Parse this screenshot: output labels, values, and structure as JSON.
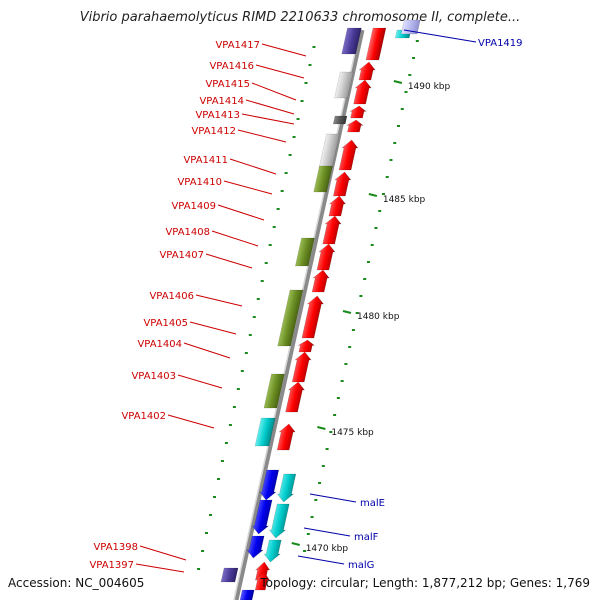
{
  "title": "Vibrio parahaemolyticus RIMD 2210633 chromosome II, complete...",
  "footer": {
    "accession": "Accession: NC_004605",
    "summary": "Topology: circular; Length: 1,877,212 bp; Genes: 1,769"
  },
  "colors": {
    "backbone": "#8a8a8a",
    "gene_label": "#cc0000",
    "feature_label": "#0000aa",
    "tick": "#1a8a1a",
    "red": "#ff0000",
    "green": "#6b8e23",
    "cyan": "#00cccc",
    "blue": "#0000ee",
    "purple": "#4b3c9a",
    "silver": "#c8c8c8",
    "dark": "#555555"
  },
  "scale_labels": [
    "1490 kbp",
    "1485 kbp",
    "1480 kbp",
    "1475 kbp",
    "1470 kbp"
  ],
  "gene_labels_left": [
    "VPA1417",
    "VPA1416",
    "VPA1415",
    "VPA1414",
    "VPA1413",
    "VPA1412",
    "VPA1411",
    "VPA1410",
    "VPA1409",
    "VPA1408",
    "VPA1407",
    "VPA1406",
    "VPA1405",
    "VPA1404",
    "VPA1403",
    "VPA1402",
    "VPA1398",
    "VPA1397"
  ],
  "feature_labels_right": [
    "VPA1419",
    "malE",
    "malF",
    "malG"
  ]
}
